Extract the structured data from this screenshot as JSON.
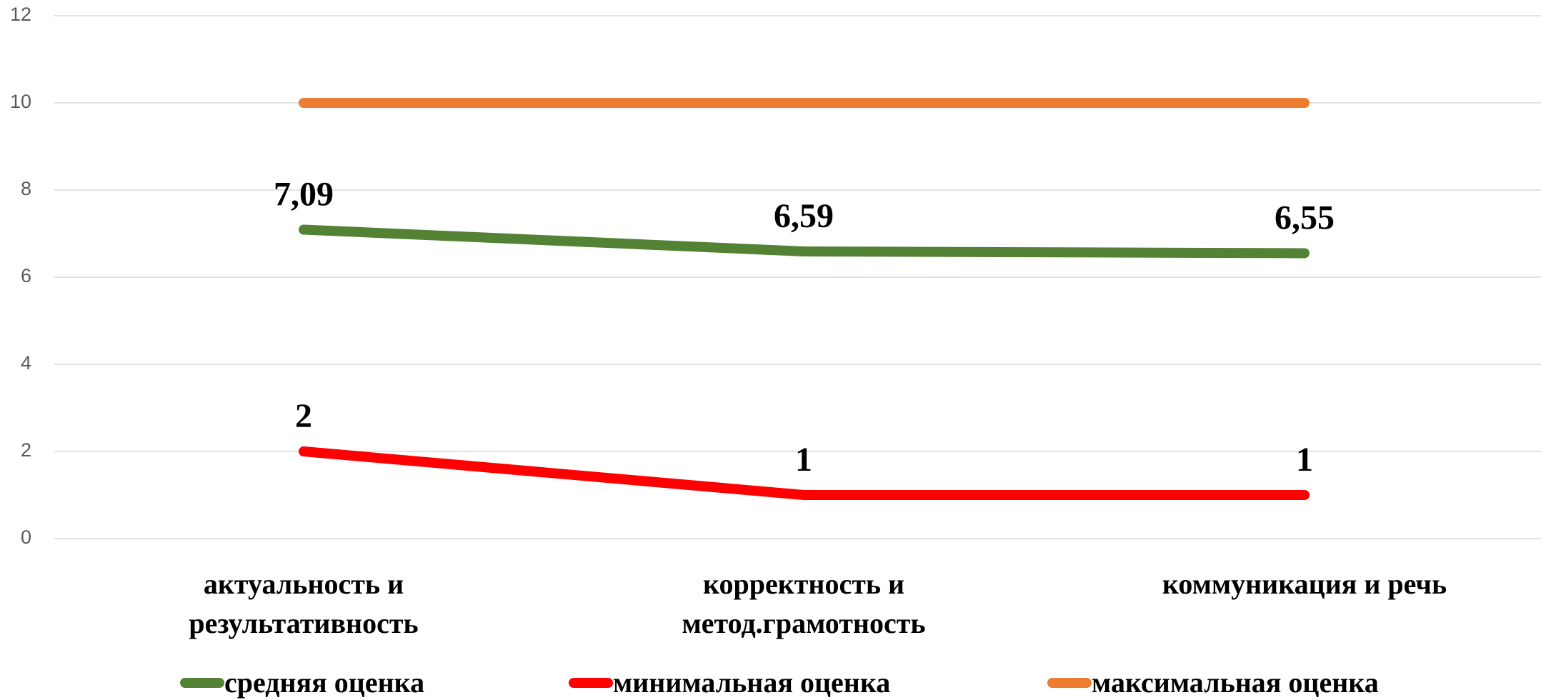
{
  "chart_data": {
    "type": "line",
    "categories": [
      "актуальность и результативность",
      "корректность и метод.грамотность",
      "коммуникация и речь"
    ],
    "series": [
      {
        "name": "средняя оценка",
        "color": "#548235",
        "values": [
          7.09,
          6.59,
          6.55
        ],
        "value_labels": [
          "7,09",
          "6,59",
          "6,55"
        ],
        "data_labels": true
      },
      {
        "name": "минимальная оценка",
        "color": "#ff0000",
        "values": [
          2,
          1,
          1
        ],
        "data_labels": true
      },
      {
        "name": "максимальная оценка",
        "color": "#ed7d31",
        "values": [
          10,
          10,
          10
        ],
        "data_labels": false
      }
    ],
    "ylim": [
      0,
      12
    ],
    "yticks": [
      0,
      2,
      4,
      6,
      8,
      10,
      12
    ],
    "grid": true,
    "legend": "bottom"
  }
}
